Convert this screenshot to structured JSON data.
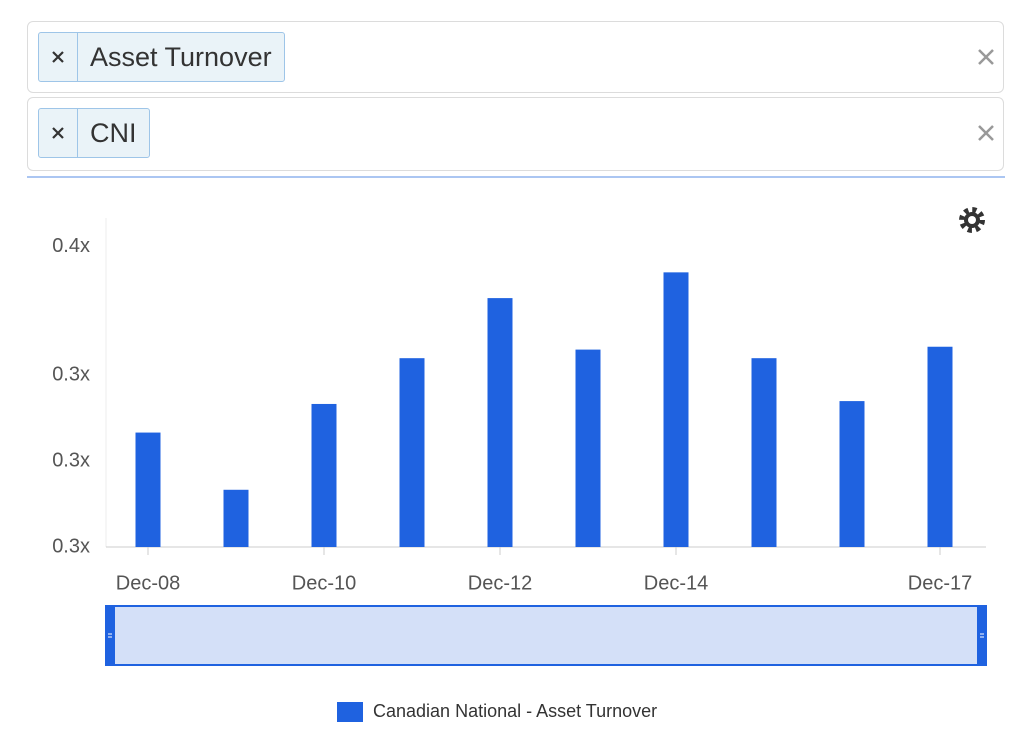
{
  "filters": [
    {
      "tag": "Asset Turnover"
    },
    {
      "tag": "CNI"
    }
  ],
  "chart_data": {
    "type": "bar",
    "categories": [
      "Dec-08",
      null,
      "Dec-10",
      null,
      "Dec-12",
      null,
      "Dec-14",
      null,
      null,
      "Dec-17"
    ],
    "series": [
      {
        "name": "Canadian National - Asset Turnover",
        "color": "#1f62e0",
        "values": [
          0.29,
          0.27,
          0.3,
          0.316,
          0.337,
          0.319,
          0.346,
          0.316,
          0.301,
          0.32
        ]
      }
    ],
    "ylim": [
      0.25,
      0.365
    ],
    "yticks": [
      {
        "value": 0.25,
        "label": "0.3x"
      },
      {
        "value": 0.28,
        "label": "0.3x"
      },
      {
        "value": 0.31,
        "label": "0.3x"
      },
      {
        "value": 0.355,
        "label": "0.4x"
      }
    ],
    "grid": false
  }
}
